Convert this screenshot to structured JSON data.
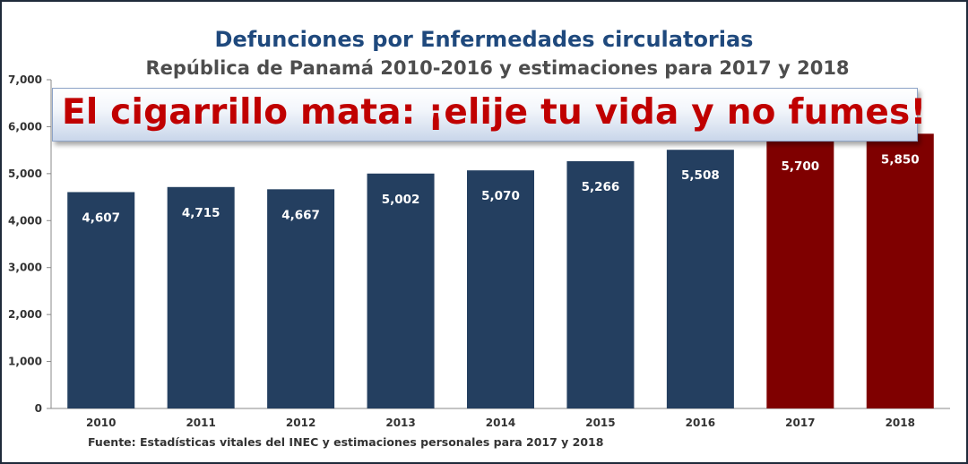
{
  "chart_data": {
    "type": "bar",
    "title": "Defunciones por Enfermedades circulatorias",
    "subtitle": "República de Panamá 2010-2016 y estimaciones para 2017 y 2018",
    "categories": [
      "2010",
      "2011",
      "2012",
      "2013",
      "2014",
      "2015",
      "2016",
      "2017",
      "2018"
    ],
    "values": [
      4607,
      4715,
      4667,
      5002,
      5070,
      5266,
      5508,
      5700,
      5850
    ],
    "data_labels": [
      "4,607",
      "4,715",
      "4,667",
      "5,002",
      "5,070",
      "5,266",
      "5,508",
      "5,700",
      "5,850"
    ],
    "bar_colors": [
      "#243f60",
      "#243f60",
      "#243f60",
      "#243f60",
      "#243f60",
      "#243f60",
      "#243f60",
      "#7f0000",
      "#7f0000"
    ],
    "ylim": [
      0,
      7000
    ],
    "yticks": [
      0,
      1000,
      2000,
      3000,
      4000,
      5000,
      6000,
      7000
    ],
    "ytick_labels": [
      "0",
      "1,000",
      "2,000",
      "3,000",
      "4,000",
      "5,000",
      "6,000",
      "7,000"
    ],
    "xlabel": "",
    "ylabel": "",
    "grid": false,
    "annotation": "El cigarrillo mata: ¡elije tu vida y no fumes!",
    "source": "Fuente: Estadísticas vitales del INEC y estimaciones personales para 2017 y 2018"
  }
}
